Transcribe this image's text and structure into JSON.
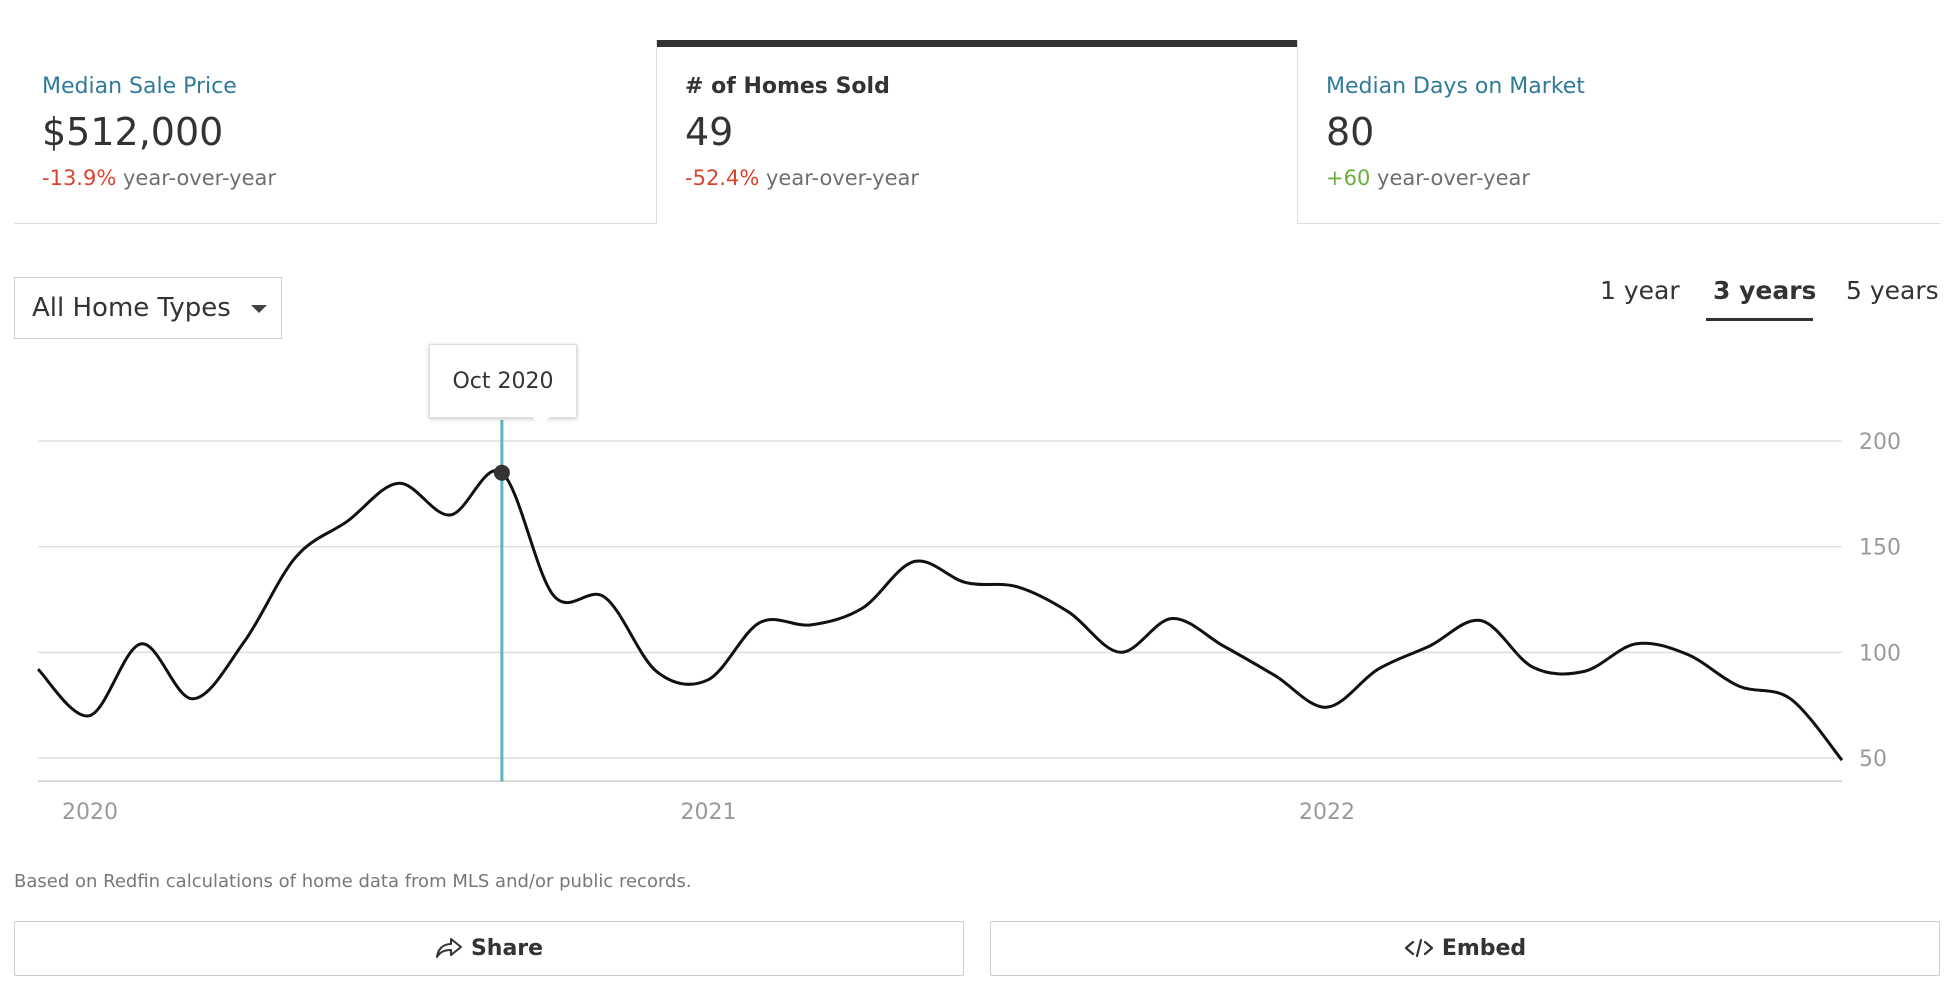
{
  "stats": [
    {
      "label": "Median Sale Price",
      "value": "$512,000",
      "change": "-13.9%",
      "change_suffix": "year-over-year"
    },
    {
      "label": "# of Homes Sold",
      "value": "49",
      "change": "-52.4%",
      "change_suffix": "year-over-year"
    },
    {
      "label": "Median Days on Market",
      "value": "80",
      "change": "+60",
      "change_suffix": "year-over-year"
    }
  ],
  "filter": {
    "selected": "All Home Types"
  },
  "ranges": {
    "one": "1 year",
    "three": "3 years",
    "five": "5 years"
  },
  "tooltip": {
    "label": "Oct 2020"
  },
  "note": "Based on Redfin calculations of home data from MLS and/or public records.",
  "buttons": {
    "share": "Share",
    "embed": "Embed"
  },
  "colors": {
    "accent": "#2f7a9b",
    "negative": "#d9432f",
    "positive": "#6caf3c",
    "cursor": "#5fb3c2"
  },
  "chart_data": {
    "type": "line",
    "x_labels": [
      "2020",
      "2021",
      "2022"
    ],
    "y_ticks": [
      200,
      150,
      100,
      50
    ],
    "ylim": [
      39,
      200
    ],
    "xlabel": "",
    "ylabel": "",
    "grid": true,
    "highlight": {
      "x": "2020-10",
      "y": 185
    },
    "series": [
      {
        "x": [
          "2020-01",
          "2020-02",
          "2020-03",
          "2020-04",
          "2020-05",
          "2020-06",
          "2020-07",
          "2020-08",
          "2020-09",
          "2020-10",
          "2020-11",
          "2020-12",
          "2021-01",
          "2021-02",
          "2021-03",
          "2021-04",
          "2021-05",
          "2021-06",
          "2021-07",
          "2021-08",
          "2021-09",
          "2021-10",
          "2021-11",
          "2021-12",
          "2022-01",
          "2022-02",
          "2022-03",
          "2022-04",
          "2022-05",
          "2022-06",
          "2022-07",
          "2022-08",
          "2022-09",
          "2022-10",
          "2022-11",
          "2022-12"
        ],
        "values": [
          92,
          70,
          104,
          78,
          105,
          145,
          162,
          180,
          165,
          185,
          127,
          126,
          91,
          87,
          114,
          113,
          121,
          143,
          133,
          131,
          119,
          100,
          116,
          103,
          89,
          74,
          92,
          103,
          115,
          93,
          91,
          104,
          99,
          84,
          78,
          49
        ]
      }
    ]
  }
}
